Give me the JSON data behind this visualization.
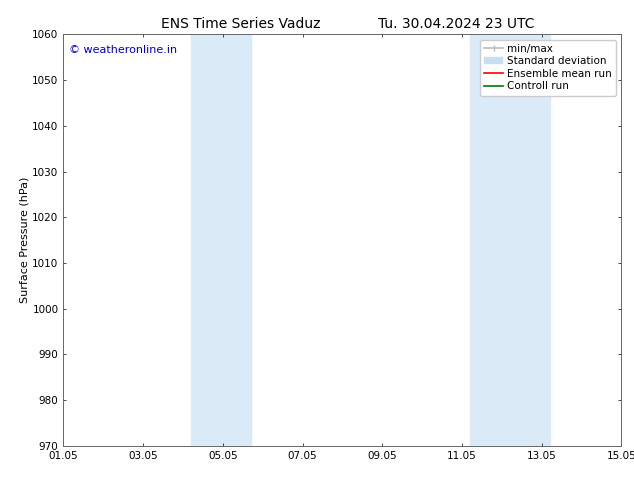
{
  "title_left": "ENS Time Series Vaduz",
  "title_right": "Tu. 30.04.2024 23 UTC",
  "ylabel": "Surface Pressure (hPa)",
  "ylim": [
    970,
    1060
  ],
  "yticks": [
    970,
    980,
    990,
    1000,
    1010,
    1020,
    1030,
    1040,
    1050,
    1060
  ],
  "xlim_start": 0,
  "xlim_end": 14,
  "xtick_labels": [
    "01.05",
    "03.05",
    "05.05",
    "07.05",
    "09.05",
    "11.05",
    "13.05",
    "15.05"
  ],
  "xtick_positions": [
    0,
    2,
    4,
    6,
    8,
    10,
    12,
    14
  ],
  "shaded_bands": [
    {
      "x_start": 3.2,
      "x_end": 4.7
    },
    {
      "x_start": 10.2,
      "x_end": 12.2
    }
  ],
  "watermark": "© weatheronline.in",
  "watermark_color": "#0000cc",
  "background_color": "#ffffff",
  "plot_bg_color": "#ffffff",
  "shade_color": "#daeaf7",
  "legend_items": [
    {
      "label": "min/max",
      "color": "#bbbbbb",
      "lw": 1.2
    },
    {
      "label": "Standard deviation",
      "color": "#c8dff0",
      "lw": 8
    },
    {
      "label": "Ensemble mean run",
      "color": "#ff0000",
      "lw": 1.2
    },
    {
      "label": "Controll run",
      "color": "#007700",
      "lw": 1.2
    }
  ],
  "title_fontsize": 10,
  "axis_label_fontsize": 8,
  "tick_fontsize": 7.5,
  "legend_fontsize": 7.5,
  "watermark_fontsize": 8
}
